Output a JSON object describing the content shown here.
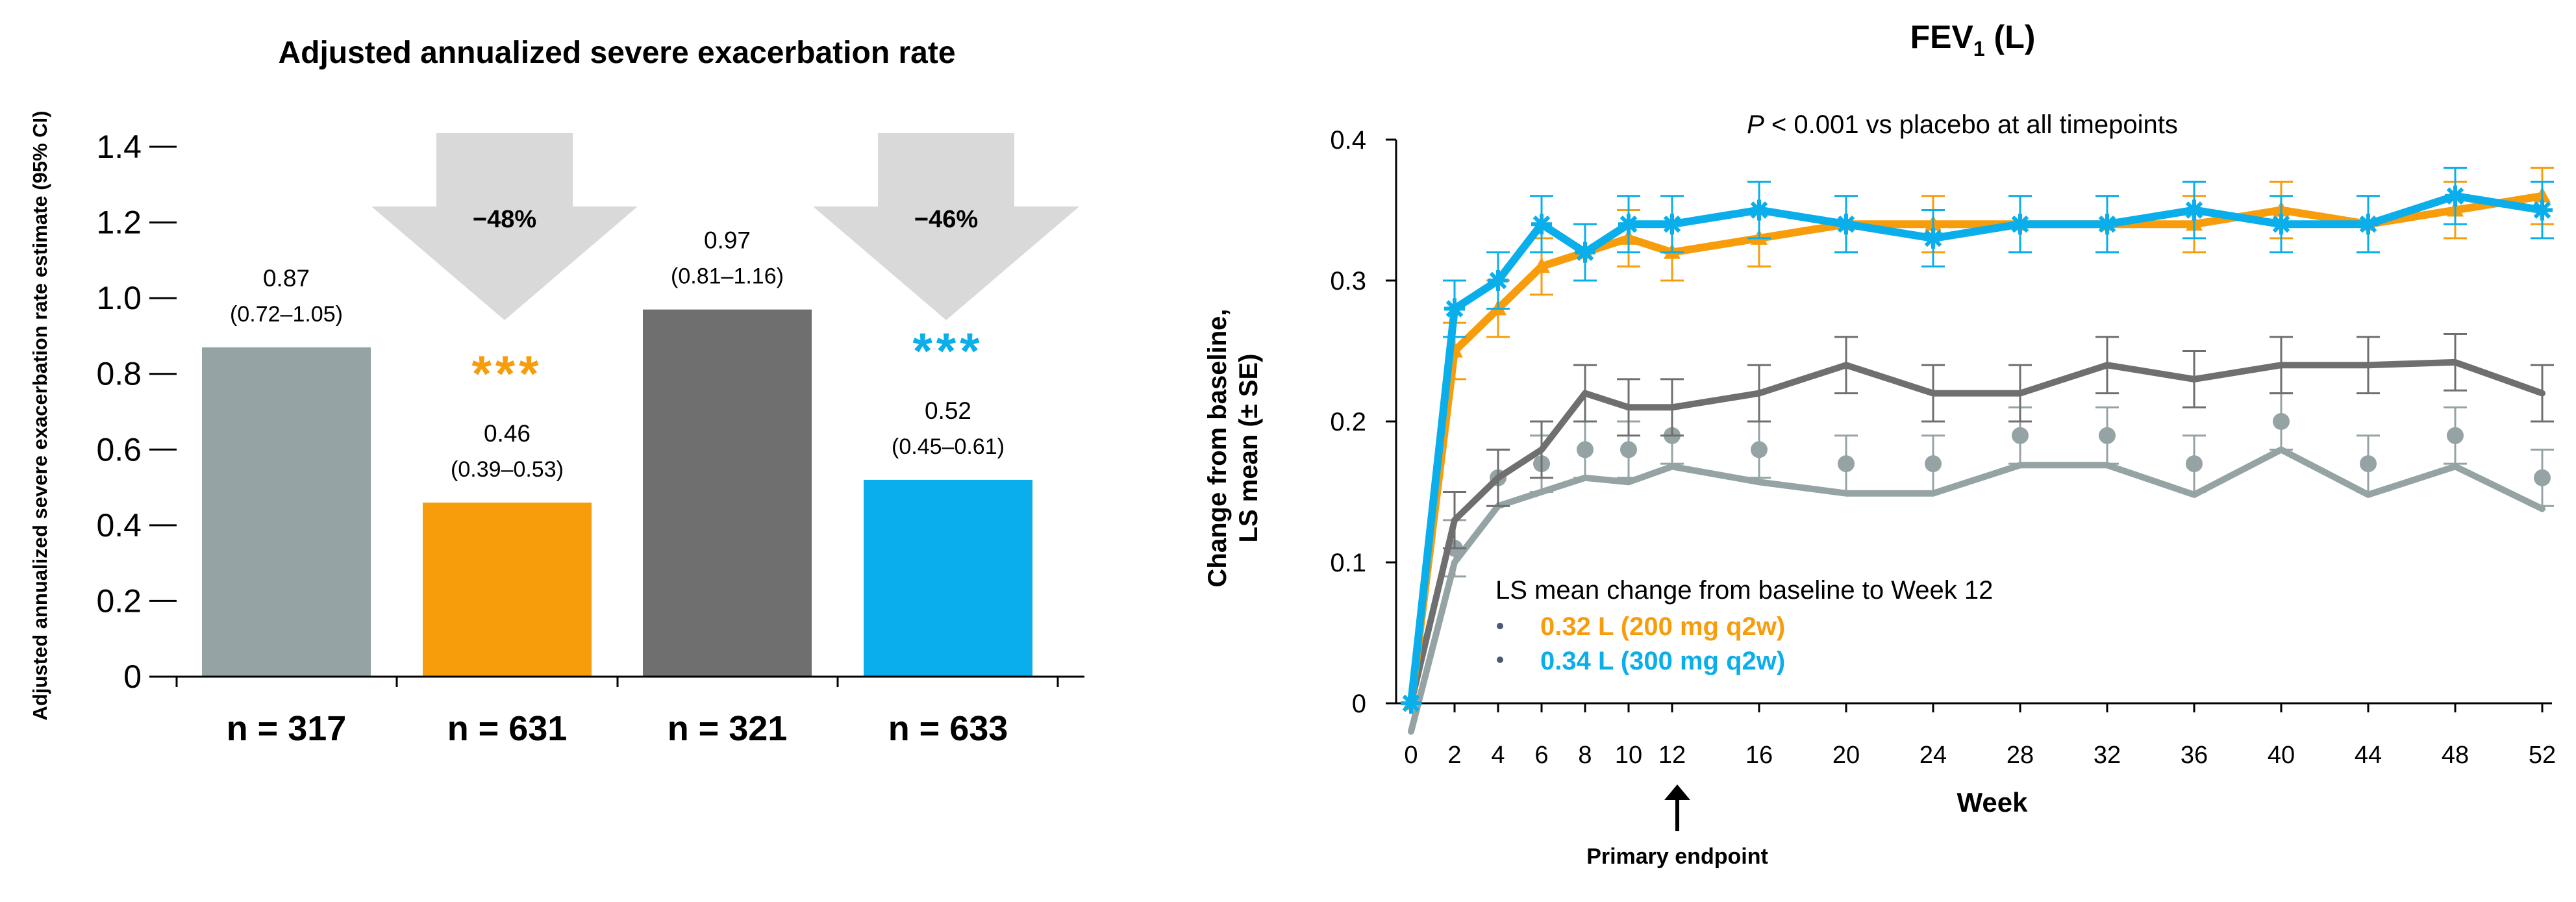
{
  "chart_data": [
    {
      "type": "bar",
      "title": "Adjusted annualized severe exacerbation rate",
      "ylabel": "Adjusted annualized severe exacerbation rate estimate (95% CI)",
      "ylim": [
        0,
        1.4
      ],
      "yticks": [
        "0",
        "0.2",
        "0.4",
        "0.6",
        "0.8",
        "1.0",
        "1.2",
        "1.4"
      ],
      "bars": [
        {
          "n_label": "n = 317",
          "value": 0.87,
          "value_label": "0.87",
          "ci_label": "(0.72–1.05)",
          "color": "#95a3a4",
          "stars": ""
        },
        {
          "n_label": "n = 631",
          "value": 0.46,
          "value_label": "0.46",
          "ci_label": "(0.39–0.53)",
          "color": "#f79d0c",
          "stars": "***"
        },
        {
          "n_label": "n = 321",
          "value": 0.97,
          "value_label": "0.97",
          "ci_label": "(0.81–1.16)",
          "color": "#6f6f6f",
          "stars": ""
        },
        {
          "n_label": "n = 633",
          "value": 0.52,
          "value_label": "0.52",
          "ci_label": "(0.45–0.61)",
          "color": "#0aaeea",
          "stars": "***"
        }
      ],
      "reductions": [
        "−48%",
        "−46%"
      ]
    },
    {
      "type": "line",
      "title_main": "FEV",
      "title_sub": "1",
      "title_tail": " (L)",
      "ylabel_line1": "Change from baseline,",
      "ylabel_line2": "LS mean (± SE)",
      "xlabel": "Week",
      "ylim": [
        0,
        0.4
      ],
      "yticks": [
        "0",
        "0.1",
        "0.2",
        "0.3",
        "0.4"
      ],
      "xticks": [
        0,
        2,
        4,
        6,
        8,
        10,
        12,
        16,
        20,
        24,
        28,
        32,
        36,
        40,
        44,
        48,
        52
      ],
      "pvalue_italic": "P",
      "pvalue_text": " < 0.001 vs placebo at all timepoints",
      "annotation": "Primary endpoint",
      "legend_title": "LS mean change from baseline to Week 12",
      "legend_items": [
        {
          "text": "0.32 L (200 mg q2w)",
          "color": "#f79d0c"
        },
        {
          "text": "0.34 L (300 mg q2w)",
          "color": "#0aaeea"
        }
      ],
      "series": [
        {
          "name": "placebo_300",
          "color": "#95a3a4",
          "marker": "line",
          "x": [
            0,
            2,
            4,
            6,
            8,
            10,
            12,
            16,
            20,
            24,
            28,
            32,
            36,
            40,
            44,
            48,
            52
          ],
          "y": [
            -0.02,
            0.1,
            0.14,
            0.15,
            0.16,
            0.157,
            0.168,
            0.157,
            0.149,
            0.149,
            0.169,
            0.169,
            0.148,
            0.18,
            0.148,
            0.168,
            0.138
          ]
        },
        {
          "name": "placebo_200",
          "color": "#95a3a4",
          "marker": "dot",
          "err": 0.02,
          "x": [
            0,
            2,
            4,
            6,
            8,
            10,
            12,
            16,
            20,
            24,
            28,
            32,
            36,
            40,
            44,
            48,
            52
          ],
          "y": [
            0,
            0.11,
            0.16,
            0.17,
            0.18,
            0.18,
            0.19,
            0.18,
            0.17,
            0.17,
            0.19,
            0.19,
            0.17,
            0.2,
            0.17,
            0.19,
            0.16
          ]
        },
        {
          "name": "dark_gray",
          "color": "#6f6f6f",
          "marker": "none",
          "err": 0.02,
          "x": [
            0,
            2,
            4,
            6,
            8,
            10,
            12,
            16,
            20,
            24,
            28,
            32,
            36,
            40,
            44,
            48,
            52
          ],
          "y": [
            0,
            0.13,
            0.16,
            0.18,
            0.22,
            0.21,
            0.21,
            0.22,
            0.24,
            0.22,
            0.22,
            0.24,
            0.23,
            0.24,
            0.24,
            0.242,
            0.22
          ]
        },
        {
          "name": "200 mg q2w",
          "color": "#f79d0c",
          "marker": "triangle",
          "err": 0.02,
          "x": [
            0,
            2,
            4,
            6,
            8,
            10,
            12,
            16,
            20,
            24,
            28,
            32,
            36,
            40,
            44,
            48,
            52
          ],
          "y": [
            0,
            0.25,
            0.28,
            0.31,
            0.32,
            0.33,
            0.32,
            0.33,
            0.34,
            0.34,
            0.34,
            0.34,
            0.34,
            0.35,
            0.34,
            0.35,
            0.36
          ]
        },
        {
          "name": "300 mg q2w",
          "color": "#0aaeea",
          "marker": "star",
          "err": 0.02,
          "x": [
            0,
            2,
            4,
            6,
            8,
            10,
            12,
            16,
            20,
            24,
            28,
            32,
            36,
            40,
            44,
            48,
            52
          ],
          "y": [
            0,
            0.28,
            0.3,
            0.34,
            0.32,
            0.34,
            0.34,
            0.35,
            0.34,
            0.33,
            0.34,
            0.34,
            0.35,
            0.34,
            0.34,
            0.36,
            0.35
          ]
        }
      ]
    }
  ]
}
